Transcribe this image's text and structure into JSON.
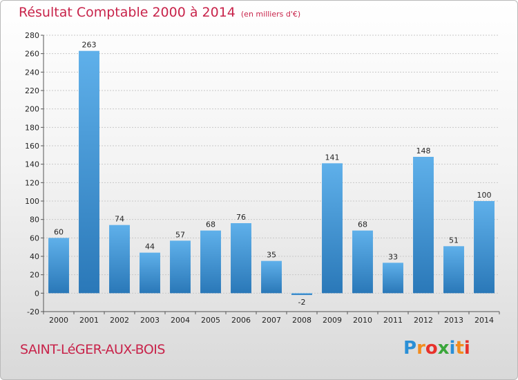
{
  "header": {
    "title": "Résultat Comptable 2000 à 2014",
    "subtitle": "(en milliers d'€)"
  },
  "footer": {
    "town": "SAINT-LéGER-AUX-BOIS",
    "brand_letters": [
      "P",
      "r",
      "o",
      "x",
      "i",
      "t",
      "i"
    ],
    "brand_colors": [
      "#2a8fd6",
      "#f28c1e",
      "#e8322b",
      "#3aa63a",
      "#2a8fd6",
      "#f28c1e",
      "#e8322b"
    ]
  },
  "colors": {
    "bar_top": "#5fb0ea",
    "bar_bottom": "#2a78b8",
    "title": "#c8234a"
  },
  "chart_data": {
    "type": "bar",
    "title": "Résultat Comptable 2000 à 2014",
    "subtitle": "(en milliers d'€)",
    "xlabel": "",
    "ylabel": "",
    "categories": [
      "2000",
      "2001",
      "2002",
      "2003",
      "2004",
      "2005",
      "2006",
      "2007",
      "2008",
      "2009",
      "2010",
      "2011",
      "2012",
      "2013",
      "2014"
    ],
    "values": [
      60,
      263,
      74,
      44,
      57,
      68,
      76,
      35,
      -2,
      141,
      68,
      33,
      148,
      51,
      100
    ],
    "ylim": [
      -20,
      280
    ],
    "yticks": [
      -20,
      0,
      20,
      40,
      60,
      80,
      100,
      120,
      140,
      160,
      180,
      200,
      220,
      240,
      260,
      280
    ],
    "grid": true,
    "legend": "none"
  }
}
